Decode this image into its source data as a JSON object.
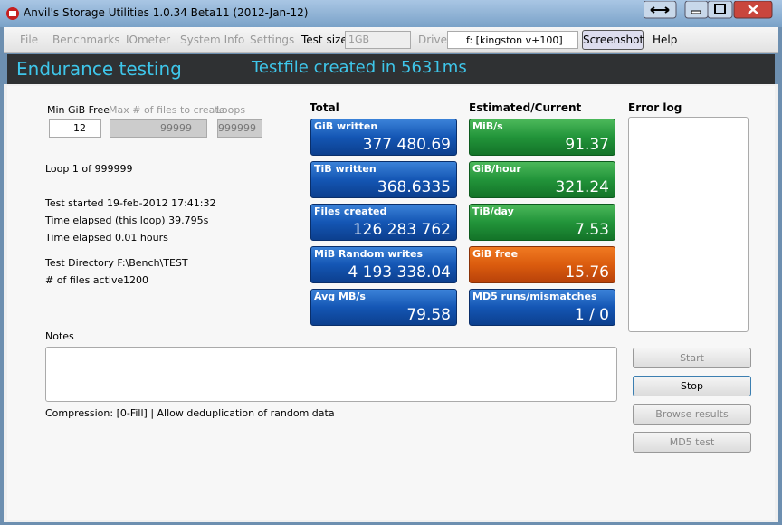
{
  "window": {
    "title": "Anvil's Storage Utilities 1.0.34 Beta11 (2012-Jan-12)"
  },
  "menu": {
    "items": [
      "File",
      "Benchmarks",
      "IOmeter",
      "System Info",
      "Settings"
    ],
    "test_size_label": "Test size",
    "test_size": "1GB",
    "drive_label": "Drive",
    "drive": "f: [kingston v+100]",
    "screenshot": "Screenshot",
    "help": "Help"
  },
  "header": {
    "title": "Endurance testing",
    "status": "Testfile created in 5631ms"
  },
  "settings": {
    "min_free_label": "Min GiB Free",
    "min_free": "12",
    "max_files_label": "Max # of files to create",
    "max_files": "99999",
    "loops_label": "Loops",
    "loops": "999999"
  },
  "info": {
    "loop": "Loop 1 of 999999",
    "started": "Test started 19-feb-2012 17:41:32",
    "elapsed_loop": "Time elapsed (this loop) 39.795s",
    "elapsed_hours": "Time elapsed 0.01 hours",
    "directory": "Test Directory F:\\Bench\\TEST",
    "files_active_label": "# of files active",
    "files_active": "1200"
  },
  "total": {
    "title": "Total",
    "tiles": [
      {
        "label": "GiB written",
        "value": "377 480.69"
      },
      {
        "label": "TiB written",
        "value": "368.6335"
      },
      {
        "label": "Files created",
        "value": "126 283 762"
      },
      {
        "label": "MiB Random writes",
        "value": "4 193 338.04"
      },
      {
        "label": "Avg MB/s",
        "value": "79.58"
      }
    ]
  },
  "estimated": {
    "title": "Estimated/Current",
    "tiles": [
      {
        "label": "MiB/s",
        "value": "91.37"
      },
      {
        "label": "GiB/hour",
        "value": "321.24"
      },
      {
        "label": "TiB/day",
        "value": "7.53"
      },
      {
        "label": "GiB free",
        "value": "15.76"
      },
      {
        "label": "MD5 runs/mismatches",
        "value": "1 / 0"
      }
    ]
  },
  "error_log": {
    "title": "Error log"
  },
  "notes": {
    "label": "Notes",
    "compression": "Compression: [0-Fill] | Allow deduplication of random data"
  },
  "buttons": [
    "Start",
    "Stop",
    "Browse results",
    "MD5 test"
  ]
}
